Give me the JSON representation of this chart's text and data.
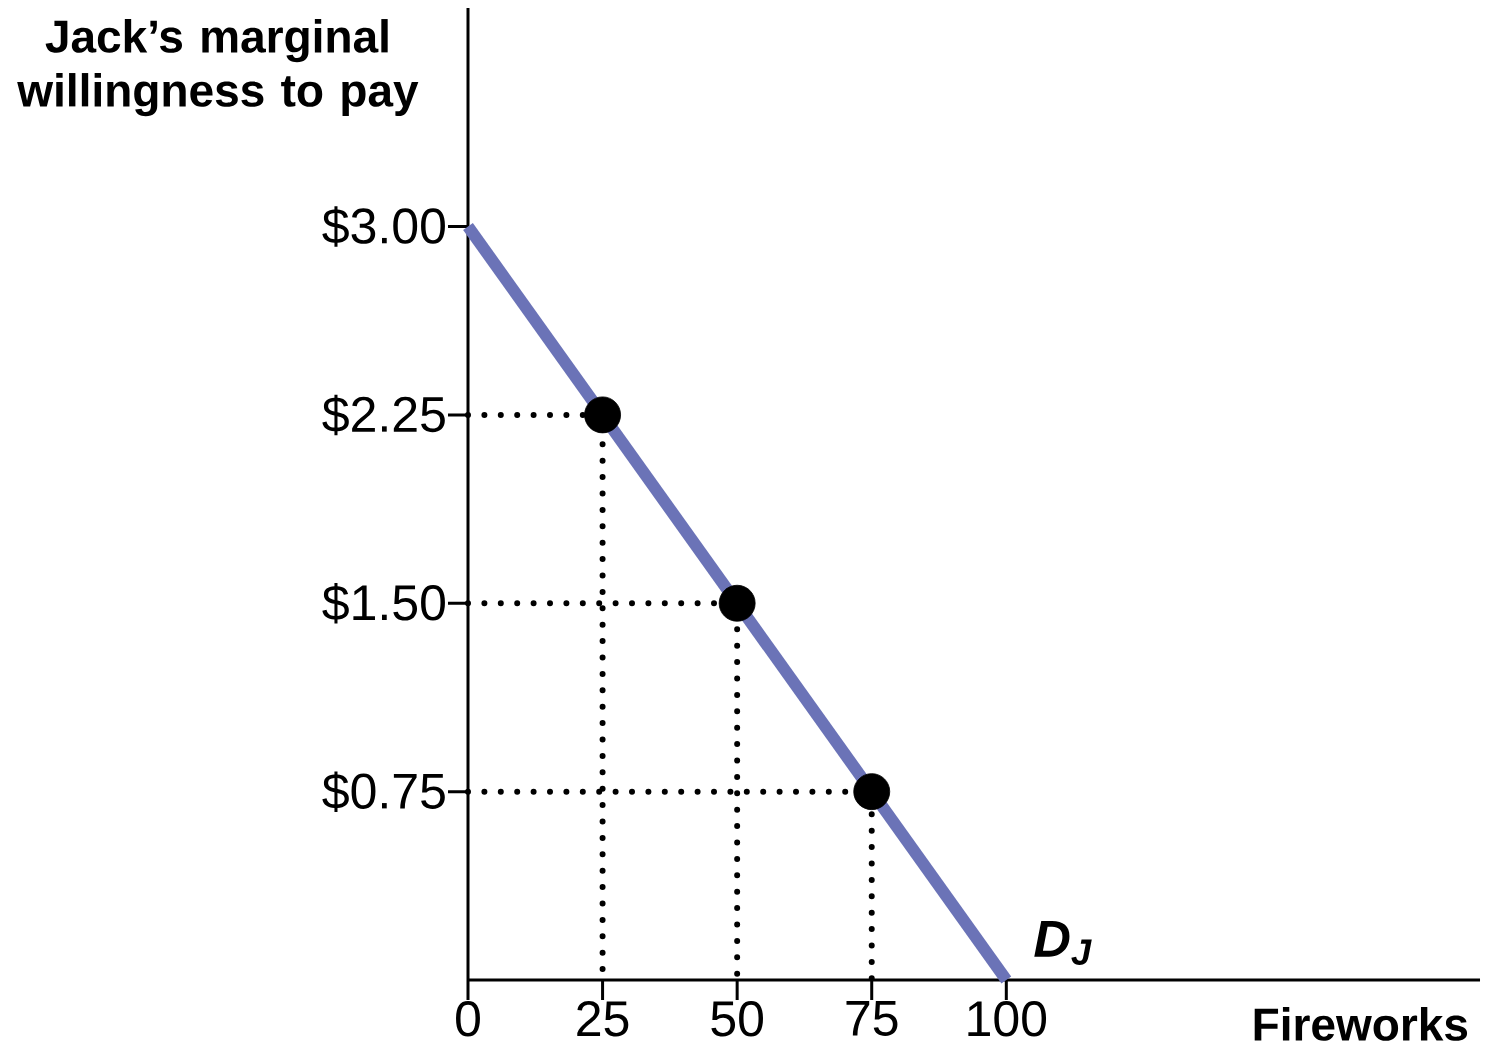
{
  "chart_data": {
    "type": "line",
    "xlabel": "Fireworks",
    "ylabel": "Jack’s marginal willingness to pay",
    "xlim": [
      0,
      188
    ],
    "ylim": [
      0,
      3.87
    ],
    "xticks": [
      0,
      25,
      50,
      75,
      100
    ],
    "yticks": [
      {
        "value": 0.75,
        "label": "$0.75"
      },
      {
        "value": 1.5,
        "label": "$1.50"
      },
      {
        "value": 2.25,
        "label": "$2.25"
      },
      {
        "value": 3,
        "label": "$3.00"
      }
    ],
    "grid": false,
    "series": [
      {
        "type": "line",
        "line_style": "dotted",
        "marker": "none",
        "color": "#000000",
        "x": [
          0,
          25,
          25
        ],
        "values": [
          2.25,
          2.25,
          0
        ]
      },
      {
        "type": "line",
        "line_style": "dotted",
        "marker": "none",
        "color": "#000000",
        "x": [
          0,
          50,
          50
        ],
        "values": [
          1.5,
          1.5,
          0
        ]
      },
      {
        "type": "line",
        "line_style": "dotted",
        "marker": "none",
        "color": "#000000",
        "x": [
          0,
          75,
          75
        ],
        "values": [
          0.75,
          0.75,
          0
        ]
      },
      {
        "name": "D$_{J}$",
        "line_style": "solid",
        "marker": "none",
        "color": "#6b73b7",
        "x": [
          0,
          100
        ],
        "values": [
          3,
          0
        ]
      },
      {
        "type": "scatter",
        "marker": "circle",
        "color": "#000000",
        "x": [
          25,
          50,
          75
        ],
        "values": [
          2.25,
          1.5,
          0.75
        ]
      }
    ]
  }
}
